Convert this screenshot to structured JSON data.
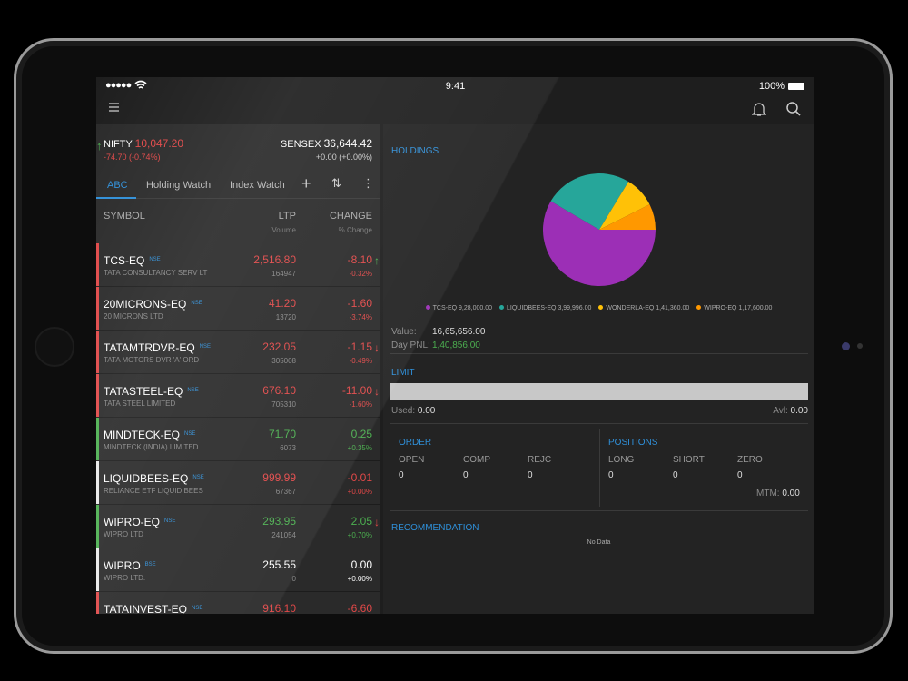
{
  "status": {
    "time": "9:41",
    "battery": "100%"
  },
  "indices": [
    {
      "name": "NIFTY",
      "value": "10,047.20",
      "change": "-74.70",
      "percent": "(-0.74%)",
      "trend": "down"
    },
    {
      "name": "SENSEX",
      "value": "36,644.42",
      "change": "+0.00",
      "percent": "(+0.00%)",
      "trend": "flat"
    }
  ],
  "tabs": [
    "ABC",
    "Holding Watch",
    "Index Watch"
  ],
  "columns": {
    "symbol": "SYMBOL",
    "ltp": "LTP",
    "volume": "Volume",
    "change": "CHANGE",
    "percent": "% Change"
  },
  "watchlist": [
    {
      "symbol": "TCS-EQ",
      "exchange": "NSE",
      "company": "TATA CONSULTANCY SERV LT",
      "ltp": "2,516.80",
      "volume": "164947",
      "change": "-8.10",
      "percent": "-0.32%",
      "trend": "down",
      "arrow": "up"
    },
    {
      "symbol": "20MICRONS-EQ",
      "exchange": "NSE",
      "company": "20 MICRONS LTD",
      "ltp": "41.20",
      "volume": "13720",
      "change": "-1.60",
      "percent": "-3.74%",
      "trend": "down",
      "arrow": null
    },
    {
      "symbol": "TATAMTRDVR-EQ",
      "exchange": "NSE",
      "company": "TATA MOTORS DVR 'A' ORD",
      "ltp": "232.05",
      "volume": "305008",
      "change": "-1.15",
      "percent": "-0.49%",
      "trend": "down",
      "arrow": "down"
    },
    {
      "symbol": "TATASTEEL-EQ",
      "exchange": "NSE",
      "company": "TATA STEEL LIMITED",
      "ltp": "676.10",
      "volume": "705310",
      "change": "-11.00",
      "percent": "-1.60%",
      "trend": "down",
      "arrow": "down"
    },
    {
      "symbol": "MINDTECK-EQ",
      "exchange": "NSE",
      "company": "MINDTECK (INDIA) LIMITED",
      "ltp": "71.70",
      "volume": "6073",
      "change": "0.25",
      "percent": "+0.35%",
      "trend": "up",
      "arrow": null
    },
    {
      "symbol": "LIQUIDBEES-EQ",
      "exchange": "NSE",
      "company": "RELIANCE ETF LIQUID BEES",
      "ltp": "999.99",
      "volume": "67367",
      "change": "-0.01",
      "percent": "+0.00%",
      "trend": "flat",
      "price_trend": "down",
      "arrow": null
    },
    {
      "symbol": "WIPRO-EQ",
      "exchange": "NSE",
      "company": "WIPRO LTD",
      "ltp": "293.95",
      "volume": "241054",
      "change": "2.05",
      "percent": "+0.70%",
      "trend": "up",
      "arrow": "down"
    },
    {
      "symbol": "WIPRO",
      "exchange": "BSE",
      "company": "WIPRO LTD.",
      "ltp": "255.55",
      "volume": "0",
      "change": "0.00",
      "percent": "+0.00%",
      "trend": "flat",
      "arrow": null
    },
    {
      "symbol": "TATAINVEST-EQ",
      "exchange": "NSE",
      "company": "",
      "ltp": "916.10",
      "volume": "",
      "change": "-6.60",
      "percent": "",
      "trend": "down",
      "arrow": null
    }
  ],
  "holdings": {
    "title": "HOLDINGS",
    "value_label": "Value:",
    "value": "16,65,656.00",
    "pnl_label": "Day PNL:",
    "pnl": "1,40,856.00"
  },
  "chart_data": {
    "type": "pie",
    "categories": [
      "TCS-EQ",
      "LIQUIDBEES-EQ",
      "WONDERLA-EQ",
      "WIPRO-EQ"
    ],
    "values": [
      928000,
      399996,
      141360,
      117600
    ],
    "value_labels": [
      "9,28,000.00",
      "3,99,996.00",
      "1,41,360.00",
      "1,17,600.00"
    ],
    "colors": [
      "#9c2fb6",
      "#26a69a",
      "#ffc107",
      "#ff9800"
    ]
  },
  "limit": {
    "title": "LIMIT",
    "used_label": "Used:",
    "used": "0.00",
    "available_label": "Avl:",
    "available": "0.00"
  },
  "order": {
    "title": "ORDER",
    "columns": [
      "OPEN",
      "COMP",
      "REJC"
    ],
    "values": [
      "0",
      "0",
      "0"
    ]
  },
  "positions": {
    "title": "POSITIONS",
    "columns": [
      "LONG",
      "SHORT",
      "ZERO"
    ],
    "values": [
      "0",
      "0",
      "0"
    ],
    "mtm_label": "MTM:",
    "mtm": "0.00"
  },
  "recommendation": {
    "title": "RECOMMENDATION",
    "empty": "No Data"
  }
}
